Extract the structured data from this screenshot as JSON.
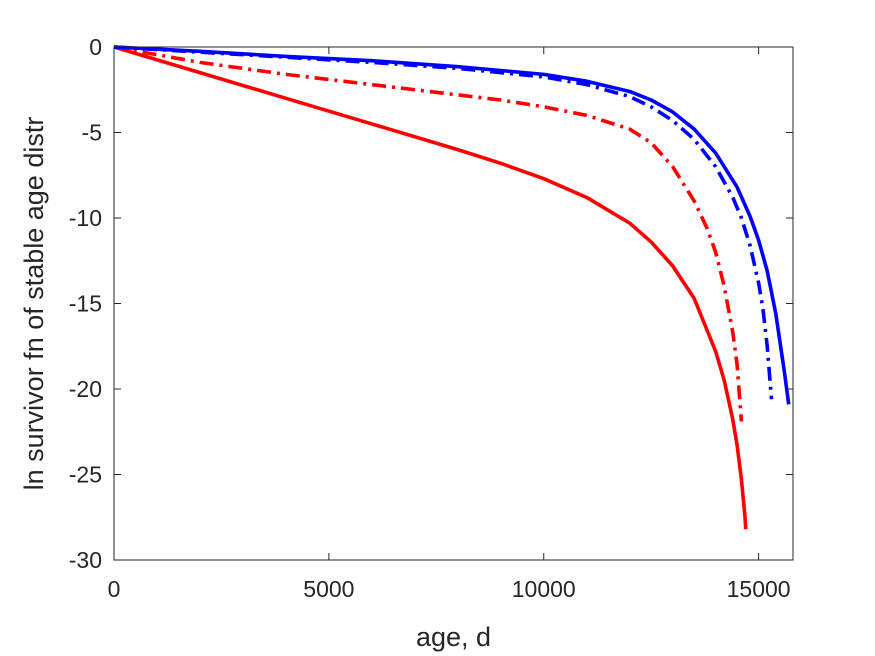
{
  "chart_data": {
    "type": "line",
    "title": "",
    "xlabel": "age, d",
    "ylabel": "ln survivor fn of stable age distr",
    "xlim": [
      0,
      15800
    ],
    "ylim": [
      -30,
      0
    ],
    "xticks": [
      0,
      5000,
      10000,
      15000
    ],
    "yticks": [
      0,
      -5,
      -10,
      -15,
      -20,
      -25,
      -30
    ],
    "xtick_labels": [
      "0",
      "5000",
      "10000",
      "15000"
    ],
    "ytick_labels": [
      "0",
      "-5",
      "-10",
      "-15",
      "-20",
      "-25",
      "-30"
    ],
    "grid": false,
    "legend": "none",
    "series": [
      {
        "color": "#ff0000",
        "style": "solid",
        "x": [
          0,
          2000,
          4000,
          6000,
          8000,
          9000,
          10000,
          11000,
          12000,
          12500,
          13000,
          13500,
          14000,
          14200,
          14400,
          14500,
          14600,
          14680,
          14700
        ],
        "y": [
          0,
          -1.5,
          -3.0,
          -4.5,
          -6.0,
          -6.8,
          -7.7,
          -8.8,
          -10.3,
          -11.4,
          -12.8,
          -14.7,
          -17.8,
          -19.5,
          -21.8,
          -23.3,
          -25.3,
          -27.4,
          -28.2
        ]
      },
      {
        "color": "#ff0000",
        "style": "dashdot",
        "x": [
          0,
          2000,
          4000,
          6000,
          8000,
          9000,
          10000,
          11000,
          12000,
          12500,
          13000,
          13500,
          13800,
          14000,
          14200,
          14400,
          14500,
          14600
        ],
        "y": [
          0,
          -0.9,
          -1.6,
          -2.2,
          -2.8,
          -3.1,
          -3.5,
          -4.0,
          -4.8,
          -5.6,
          -7.0,
          -9.0,
          -10.6,
          -12.0,
          -14.0,
          -16.7,
          -18.6,
          -21.9
        ]
      },
      {
        "color": "#0000ff",
        "style": "solid",
        "x": [
          0,
          2000,
          4000,
          6000,
          8000,
          10000,
          11000,
          12000,
          12500,
          13000,
          13500,
          14000,
          14500,
          14800,
          15000,
          15200,
          15400,
          15500,
          15600,
          15700
        ],
        "y": [
          0,
          -0.25,
          -0.55,
          -0.8,
          -1.15,
          -1.6,
          -2.0,
          -2.6,
          -3.1,
          -3.8,
          -4.8,
          -6.2,
          -8.2,
          -9.9,
          -11.3,
          -13.1,
          -15.6,
          -17.3,
          -19.0,
          -20.9
        ]
      },
      {
        "color": "#0000ff",
        "style": "dashdot",
        "x": [
          0,
          2000,
          4000,
          6000,
          8000,
          10000,
          11000,
          12000,
          12500,
          13000,
          13500,
          14000,
          14400,
          14600,
          14800,
          15000,
          15100,
          15200,
          15300
        ],
        "y": [
          0,
          -0.3,
          -0.6,
          -0.9,
          -1.25,
          -1.75,
          -2.2,
          -2.9,
          -3.5,
          -4.3,
          -5.4,
          -7.0,
          -8.8,
          -10.0,
          -11.6,
          -13.8,
          -15.3,
          -17.5,
          -20.6
        ]
      }
    ]
  }
}
